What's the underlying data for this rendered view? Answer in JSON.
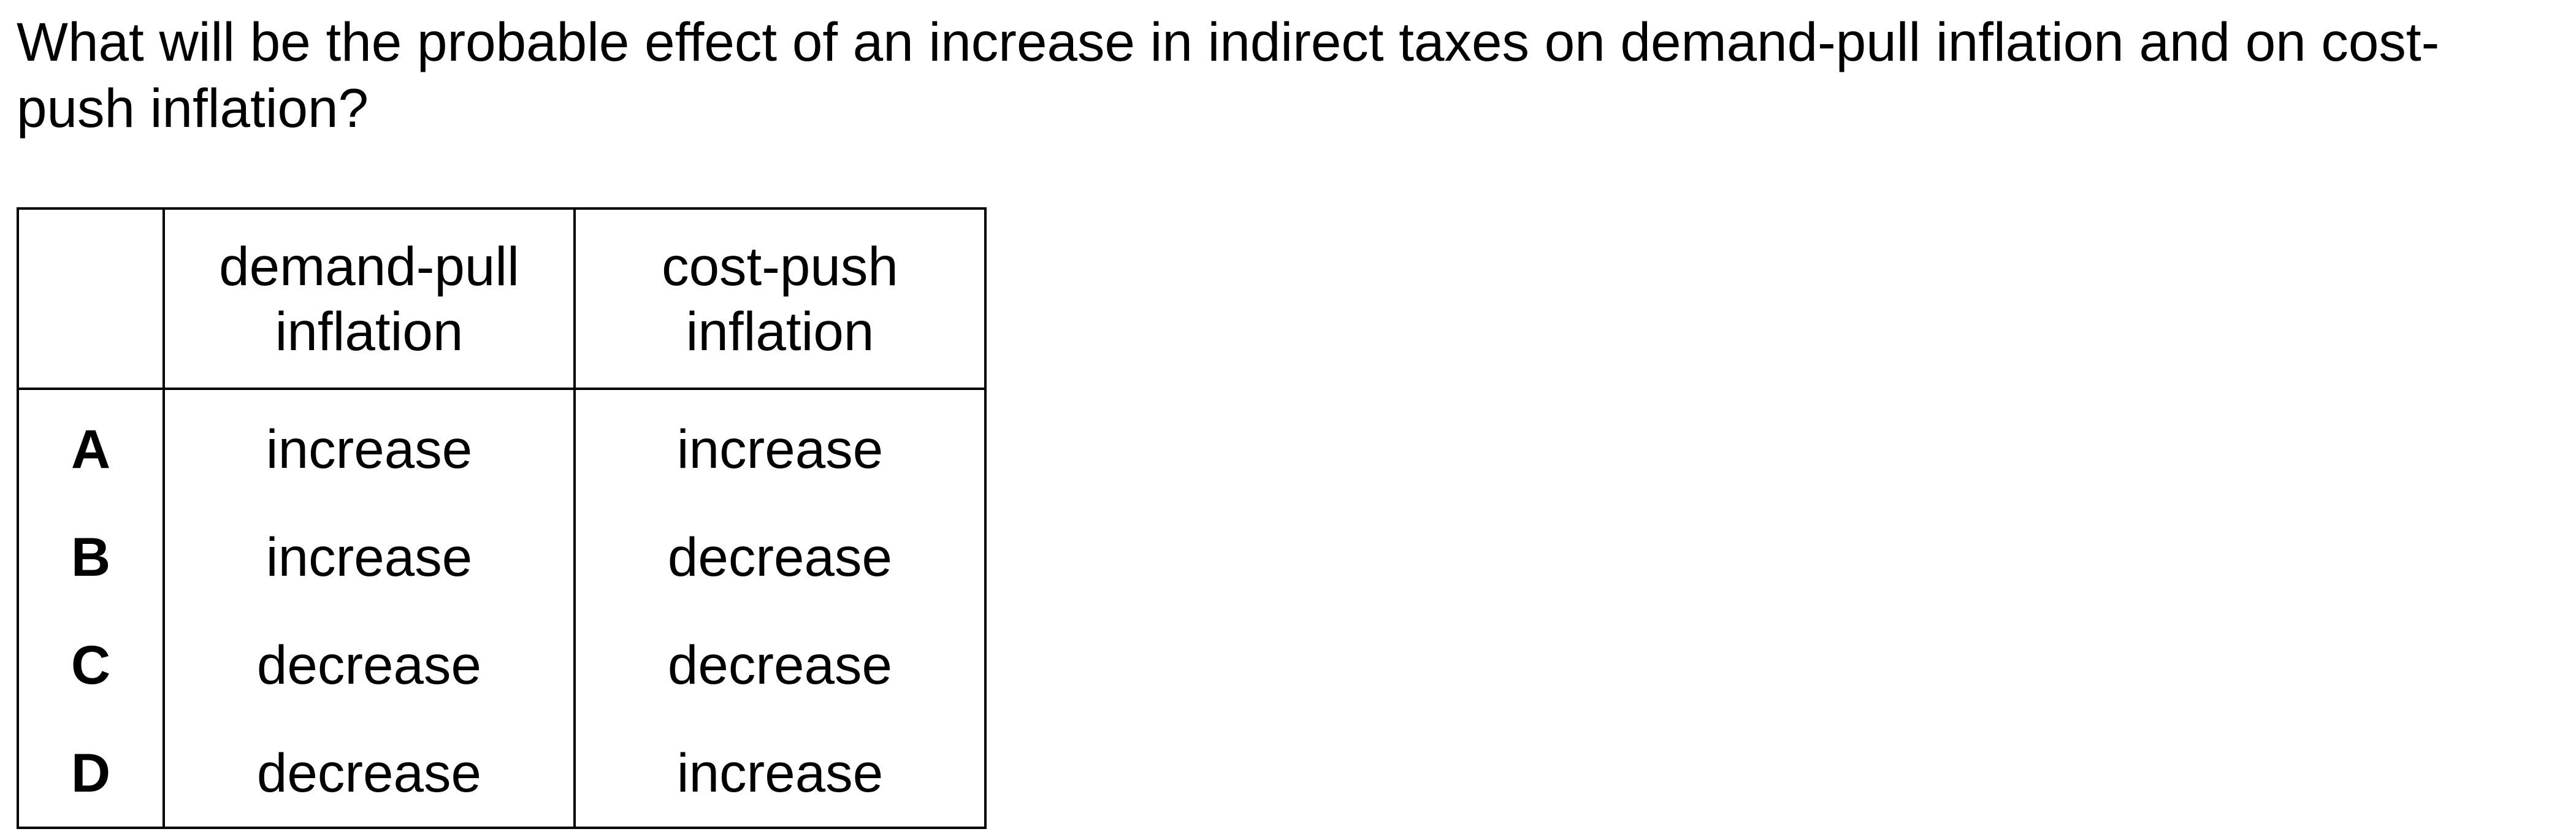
{
  "question": {
    "text": "What will be the probable effect of an increase in indirect taxes on demand-pull inflation and on cost-push inflation?"
  },
  "table": {
    "corner": "",
    "headers": [
      {
        "line1": "demand-pull",
        "line2": "inflation"
      },
      {
        "line1": "cost-push",
        "line2": "inflation"
      }
    ],
    "rows": [
      {
        "key": "A",
        "demand_pull": "increase",
        "cost_push": "increase"
      },
      {
        "key": "B",
        "demand_pull": "increase",
        "cost_push": "decrease"
      },
      {
        "key": "C",
        "demand_pull": "decrease",
        "cost_push": "decrease"
      },
      {
        "key": "D",
        "demand_pull": "decrease",
        "cost_push": "increase"
      }
    ]
  }
}
